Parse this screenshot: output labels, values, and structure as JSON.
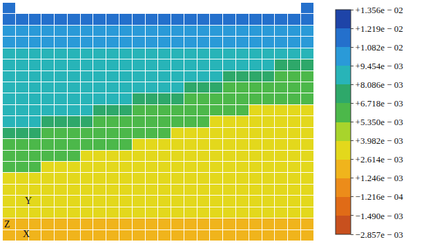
{
  "chart_data": {
    "type": "heatmap",
    "tick_labels": false,
    "colorbar": {
      "range": [
        -0.002857,
        0.01356
      ],
      "ticks": [
        {
          "value": -0.002857,
          "label": "−2.857e − 03"
        },
        {
          "value": -0.00149,
          "label": "−1.490e − 03"
        },
        {
          "value": -0.0001216,
          "label": "−1.216e − 04"
        },
        {
          "value": 0.001246,
          "label": "+1.246e − 03"
        },
        {
          "value": 0.002614,
          "label": "+2.614e − 03"
        },
        {
          "value": 0.003982,
          "label": "+3.982e − 03"
        },
        {
          "value": 0.00535,
          "label": "+5.350e − 03"
        },
        {
          "value": 0.006718,
          "label": "+6.718e − 03"
        },
        {
          "value": 0.008086,
          "label": "+8.086e − 03"
        },
        {
          "value": 0.009454,
          "label": "+9.454e − 03"
        },
        {
          "value": 0.01082,
          "label": "+1.082e − 02"
        },
        {
          "value": 0.01219,
          "label": "+1.219e − 02"
        },
        {
          "value": 0.01356,
          "label": "+1.356e − 02"
        }
      ],
      "colors": [
        "#c8501e",
        "#e06b17",
        "#ec8c1a",
        "#f0b41c",
        "#e3d81c",
        "#a8d42c",
        "#4cb84a",
        "#2ea86a",
        "#28b4b8",
        "#2a9ad8",
        "#2470cc",
        "#1e44a8"
      ]
    },
    "annotations": [
      {
        "text": "Y"
      },
      {
        "text": "Z"
      },
      {
        "text": "X"
      }
    ],
    "z": [
      [
        0.0118,
        null,
        null,
        null,
        null,
        null,
        null,
        null,
        null,
        null,
        null,
        null,
        null,
        null,
        null,
        null,
        null,
        null,
        null,
        null,
        null,
        null,
        null,
        0.0118
      ],
      [
        0.0115,
        0.0115,
        0.0115,
        0.0115,
        0.0115,
        0.0115,
        0.0115,
        0.0115,
        0.0115,
        0.0115,
        0.0115,
        0.0115,
        0.0115,
        0.0115,
        0.0115,
        0.0115,
        0.0115,
        0.0115,
        0.0115,
        0.0115,
        0.0115,
        0.0115,
        0.0115,
        0.0115
      ],
      [
        0.01,
        0.01,
        0.01,
        0.01,
        0.01,
        0.01,
        0.01,
        0.01,
        0.01,
        0.01,
        0.01,
        0.01,
        0.01,
        0.01,
        0.01,
        0.01,
        0.01,
        0.01,
        0.01,
        0.01,
        0.01,
        0.01,
        0.01,
        0.01
      ],
      [
        0.01,
        0.01,
        0.01,
        0.01,
        0.01,
        0.01,
        0.01,
        0.01,
        0.01,
        0.01,
        0.01,
        0.01,
        0.01,
        0.01,
        0.01,
        0.01,
        0.01,
        0.01,
        0.01,
        0.01,
        0.01,
        0.01,
        0.01,
        0.01
      ],
      [
        0.009,
        0.009,
        0.009,
        0.009,
        0.009,
        0.009,
        0.009,
        0.009,
        0.009,
        0.009,
        0.009,
        0.009,
        0.009,
        0.009,
        0.009,
        0.009,
        0.009,
        0.009,
        0.009,
        0.009,
        0.009,
        0.009,
        0.009,
        0.009
      ],
      [
        0.009,
        0.009,
        0.009,
        0.009,
        0.009,
        0.009,
        0.009,
        0.009,
        0.009,
        0.009,
        0.009,
        0.009,
        0.009,
        0.009,
        0.009,
        0.009,
        0.009,
        0.009,
        0.009,
        0.009,
        0.009,
        0.0072,
        0.0072,
        0.0072
      ],
      [
        0.009,
        0.009,
        0.009,
        0.009,
        0.009,
        0.009,
        0.009,
        0.009,
        0.009,
        0.009,
        0.009,
        0.009,
        0.009,
        0.009,
        0.009,
        0.009,
        0.009,
        0.0072,
        0.0072,
        0.0072,
        0.0072,
        0.0058,
        0.0058,
        0.0058
      ],
      [
        0.009,
        0.009,
        0.009,
        0.009,
        0.009,
        0.009,
        0.009,
        0.009,
        0.009,
        0.009,
        0.009,
        0.009,
        0.009,
        0.009,
        0.0072,
        0.0072,
        0.0072,
        0.0058,
        0.0058,
        0.0058,
        0.0058,
        0.0058,
        0.0058,
        0.0058
      ],
      [
        0.009,
        0.009,
        0.009,
        0.009,
        0.009,
        0.009,
        0.009,
        0.009,
        0.009,
        0.009,
        0.0072,
        0.0072,
        0.0072,
        0.0072,
        0.0058,
        0.0058,
        0.0058,
        0.0058,
        0.0058,
        0.0058,
        0.0058,
        0.0058,
        0.0058,
        0.0058
      ],
      [
        0.009,
        0.009,
        0.009,
        0.009,
        0.009,
        0.009,
        0.009,
        0.0072,
        0.0072,
        0.0072,
        0.0058,
        0.0058,
        0.0058,
        0.0058,
        0.0058,
        0.0058,
        0.0058,
        0.0058,
        0.0058,
        0.0033,
        0.0033,
        0.0033,
        0.0033,
        0.0033
      ],
      [
        0.009,
        0.009,
        0.009,
        0.0072,
        0.0072,
        0.0072,
        0.0072,
        0.0058,
        0.0058,
        0.0058,
        0.0058,
        0.0058,
        0.0058,
        0.0058,
        0.0058,
        0.0058,
        0.0033,
        0.0033,
        0.0033,
        0.0033,
        0.0033,
        0.0033,
        0.0033,
        0.0033
      ],
      [
        0.0072,
        0.0072,
        0.0072,
        0.0058,
        0.0058,
        0.0058,
        0.0058,
        0.0058,
        0.0058,
        0.0058,
        0.0058,
        0.0058,
        0.0058,
        0.0033,
        0.0033,
        0.0033,
        0.0033,
        0.0033,
        0.0033,
        0.0033,
        0.0033,
        0.0033,
        0.0033,
        0.0033
      ],
      [
        0.0058,
        0.0058,
        0.0058,
        0.0058,
        0.0058,
        0.0058,
        0.0058,
        0.0058,
        0.0058,
        0.0058,
        0.0033,
        0.0033,
        0.0033,
        0.0033,
        0.0033,
        0.0033,
        0.0033,
        0.0033,
        0.0033,
        0.0033,
        0.0033,
        0.0033,
        0.0033,
        0.0033
      ],
      [
        0.0058,
        0.0058,
        0.0058,
        0.0058,
        0.0058,
        0.0058,
        0.0033,
        0.0033,
        0.0033,
        0.0033,
        0.0033,
        0.0033,
        0.0033,
        0.0033,
        0.0033,
        0.0033,
        0.0033,
        0.0033,
        0.0033,
        0.0033,
        0.0033,
        0.0033,
        0.0033,
        0.0033
      ],
      [
        0.0058,
        0.0058,
        0.0058,
        0.0033,
        0.0033,
        0.0033,
        0.0033,
        0.0033,
        0.0033,
        0.0033,
        0.0033,
        0.0033,
        0.0033,
        0.0033,
        0.0033,
        0.0033,
        0.0033,
        0.0033,
        0.0033,
        0.0033,
        0.0033,
        0.0033,
        0.0033,
        0.0033
      ],
      [
        0.0033,
        0.0033,
        0.0033,
        0.0033,
        0.0033,
        0.0033,
        0.0033,
        0.0033,
        0.0033,
        0.0033,
        0.0033,
        0.0033,
        0.0033,
        0.0033,
        0.0033,
        0.0033,
        0.0033,
        0.0033,
        0.0033,
        0.0033,
        0.0033,
        0.0033,
        0.0033,
        0.0033
      ],
      [
        0.0033,
        0.0033,
        0.0033,
        0.0033,
        0.0033,
        0.0033,
        0.0033,
        0.0033,
        0.0033,
        0.0033,
        0.0033,
        0.0033,
        0.0033,
        0.0033,
        0.0033,
        0.0033,
        0.0033,
        0.0033,
        0.0033,
        0.0033,
        0.0033,
        0.0033,
        0.0033,
        0.0033
      ],
      [
        0.0033,
        0.0033,
        0.0033,
        0.0033,
        0.0033,
        0.0033,
        0.0033,
        0.0033,
        0.0033,
        0.0033,
        0.0033,
        0.0033,
        0.0033,
        0.0033,
        0.0033,
        0.0033,
        0.0033,
        0.0033,
        0.0033,
        0.0033,
        0.0033,
        0.0033,
        0.0033,
        0.0033
      ],
      [
        0.0028,
        0.0028,
        0.0028,
        0.0028,
        0.0028,
        0.0028,
        0.0028,
        0.0028,
        0.0028,
        0.0028,
        0.0028,
        0.0028,
        0.0028,
        0.0028,
        0.0028,
        0.0028,
        0.0028,
        0.0028,
        0.0028,
        0.0028,
        0.0028,
        0.0028,
        0.0028,
        0.0028
      ],
      [
        0.0021,
        0.0021,
        0.0021,
        0.0021,
        0.0021,
        0.0021,
        0.0021,
        0.0021,
        0.0021,
        0.0021,
        0.0021,
        0.0021,
        0.0021,
        0.0021,
        0.0021,
        0.0021,
        0.0021,
        0.0021,
        0.0021,
        0.0021,
        0.0021,
        0.0021,
        0.0021,
        0.0021
      ],
      [
        0.0015,
        0.0015,
        0.0015,
        0.0015,
        0.0015,
        0.0015,
        0.0015,
        0.0015,
        0.0015,
        0.0015,
        0.0015,
        0.0015,
        0.0015,
        0.0015,
        0.0015,
        0.0015,
        0.0015,
        0.0015,
        0.0015,
        0.0015,
        0.0015,
        0.0015,
        0.0015,
        0.0015
      ]
    ]
  }
}
